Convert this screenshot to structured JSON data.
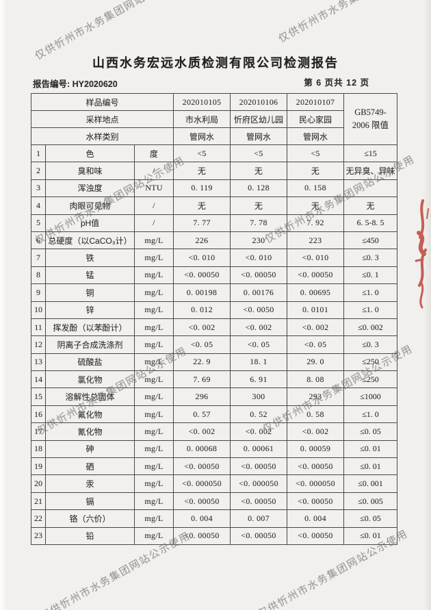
{
  "page": {
    "title": "山西水务宏远水质检测有限公司检测报告",
    "report_no_label": "报告编号:",
    "report_no": "HY2020620",
    "page_indicator": "第 6 页共 12 页"
  },
  "watermark": {
    "text": "仅供忻州市水务集团网站公示使用"
  },
  "seal": {
    "color": "#b93226"
  },
  "table": {
    "header": {
      "sample_no_label": "样品编号",
      "location_label": "采样地点",
      "type_label": "水样类别",
      "sample_nos": [
        "202010105",
        "202010106",
        "202010107"
      ],
      "locations": [
        "市水利局",
        "忻府区幼儿园",
        "民心家园"
      ],
      "types": [
        "管网水",
        "管网水",
        "管网水"
      ],
      "limit_header_line1": "GB5749-",
      "limit_header_line2": "2006 限值"
    },
    "rows": [
      {
        "no": "1",
        "item": "色",
        "unit": "度",
        "v1": "<5",
        "v2": "<5",
        "v3": "<5",
        "limit": "≤15"
      },
      {
        "no": "2",
        "item": "臭和味",
        "unit": "/",
        "v1": "无",
        "v2": "无",
        "v3": "无",
        "limit": "无异臭、异味"
      },
      {
        "no": "3",
        "item": "浑浊度",
        "unit": "NTU",
        "v1": "0. 119",
        "v2": "0. 128",
        "v3": "0. 158",
        "limit": ""
      },
      {
        "no": "4",
        "item": "肉眼可见物",
        "unit": "/",
        "v1": "无",
        "v2": "无",
        "v3": "无",
        "limit": "无"
      },
      {
        "no": "5",
        "item": "pH值",
        "unit": "/",
        "v1": "7. 77",
        "v2": "7. 78",
        "v3": "7. 92",
        "limit": "6. 5-8. 5"
      },
      {
        "no": "6",
        "item": "总硬度（以CaCO₃计）",
        "unit": "mg/L",
        "v1": "226",
        "v2": "230",
        "v3": "223",
        "limit": "≤450"
      },
      {
        "no": "7",
        "item": "铁",
        "unit": "mg/L",
        "v1": "<0. 010",
        "v2": "<0. 010",
        "v3": "<0. 010",
        "limit": "≤0. 3"
      },
      {
        "no": "8",
        "item": "锰",
        "unit": "mg/L",
        "v1": "<0. 00050",
        "v2": "<0. 00050",
        "v3": "<0. 00050",
        "limit": "≤0. 1"
      },
      {
        "no": "9",
        "item": "铜",
        "unit": "mg/L",
        "v1": "0. 00198",
        "v2": "0. 00176",
        "v3": "0. 00695",
        "limit": "≤1. 0"
      },
      {
        "no": "10",
        "item": "锌",
        "unit": "mg/L",
        "v1": "0. 012",
        "v2": "<0. 0050",
        "v3": "0. 0101",
        "limit": "≤1. 0"
      },
      {
        "no": "11",
        "item": "挥发酚（以苯酚计）",
        "unit": "mg/L",
        "v1": "<0. 002",
        "v2": "<0. 002",
        "v3": "<0. 002",
        "limit": "≤0. 002"
      },
      {
        "no": "12",
        "item": "阴离子合成洗涤剂",
        "unit": "mg/L",
        "v1": "<0. 05",
        "v2": "<0. 05",
        "v3": "<0. 05",
        "limit": "≤0. 3"
      },
      {
        "no": "13",
        "item": "硫酸盐",
        "unit": "mg/L",
        "v1": "22. 9",
        "v2": "18. 1",
        "v3": "29. 0",
        "limit": "≤250"
      },
      {
        "no": "14",
        "item": "氯化物",
        "unit": "mg/L",
        "v1": "7. 69",
        "v2": "6. 91",
        "v3": "8. 08",
        "limit": "≤250"
      },
      {
        "no": "15",
        "item": "溶解性总固体",
        "unit": "mg/L",
        "v1": "296",
        "v2": "300",
        "v3": "293",
        "limit": "≤1000"
      },
      {
        "no": "16",
        "item": "氟化物",
        "unit": "mg/L",
        "v1": "0. 57",
        "v2": "0. 52",
        "v3": "0. 58",
        "limit": "≤1. 0"
      },
      {
        "no": "17",
        "item": "氰化物",
        "unit": "mg/L",
        "v1": "<0. 002",
        "v2": "<0. 002",
        "v3": "<0. 002",
        "limit": "≤0. 05"
      },
      {
        "no": "18",
        "item": "砷",
        "unit": "mg/L",
        "v1": "0. 00068",
        "v2": "0. 00061",
        "v3": "0. 00059",
        "limit": "≤0. 01"
      },
      {
        "no": "19",
        "item": "硒",
        "unit": "mg/L",
        "v1": "<0. 00050",
        "v2": "<0. 00050",
        "v3": "<0. 00050",
        "limit": "≤0. 01"
      },
      {
        "no": "20",
        "item": "汞",
        "unit": "mg/L",
        "v1": "<0. 000050",
        "v2": "<0. 000050",
        "v3": "<0. 000050",
        "limit": "≤0. 001"
      },
      {
        "no": "21",
        "item": "镉",
        "unit": "mg/L",
        "v1": "<0. 00050",
        "v2": "<0. 00050",
        "v3": "<0. 00050",
        "limit": "≤0. 005"
      },
      {
        "no": "22",
        "item": "铬（六价）",
        "unit": "mg/L",
        "v1": "0. 004",
        "v2": "0. 007",
        "v3": "0. 004",
        "limit": "≤0. 05"
      },
      {
        "no": "23",
        "item": "铅",
        "unit": "mg/L",
        "v1": "<0. 00050",
        "v2": "<0. 00050",
        "v3": "<0. 00050",
        "limit": "≤0. 01"
      }
    ]
  }
}
